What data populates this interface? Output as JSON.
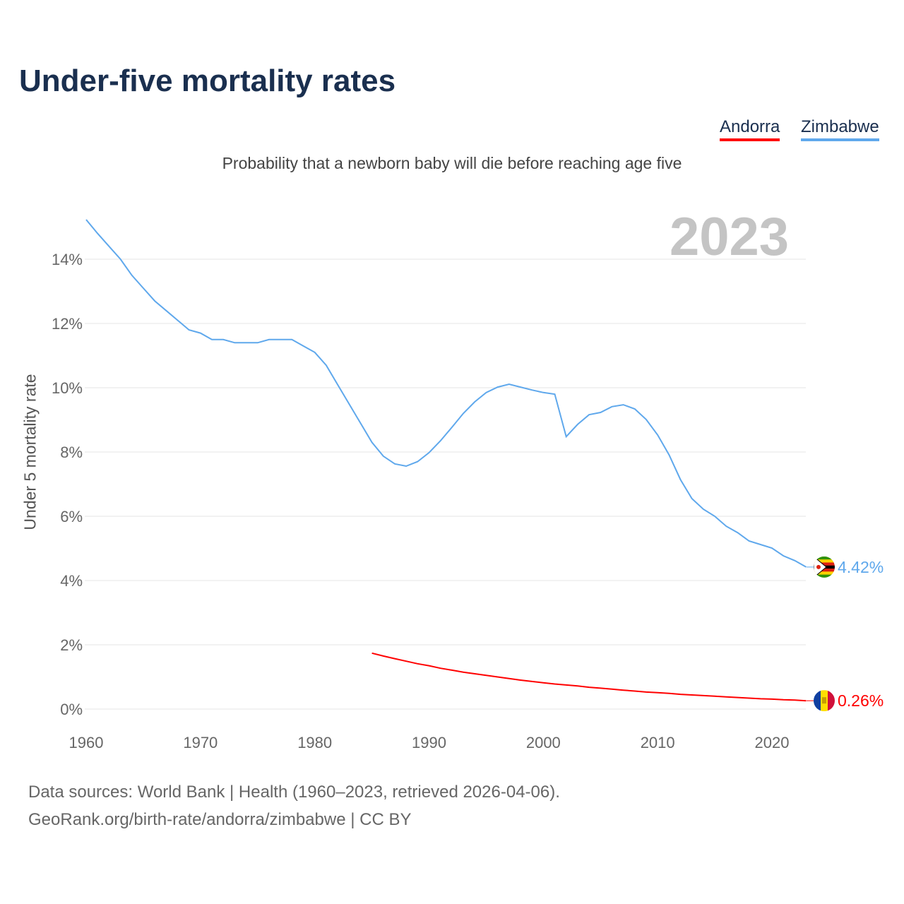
{
  "title": "Under-five mortality rates",
  "legend": [
    {
      "name": "Andorra",
      "color": "#ff0000"
    },
    {
      "name": "Zimbabwe",
      "color": "#5fa8ec"
    }
  ],
  "current_year": "2023",
  "footer": {
    "line1": "Data sources: World Bank | Health (1960–2023, retrieved 2026-04-06).",
    "line2": "GeoRank.org/birth-rate/andorra/zimbabwe | CC BY"
  },
  "chart_data": {
    "type": "line",
    "title": "Under-five mortality rates",
    "subtitle": "Probability that a newborn baby will die before reaching age five",
    "xlabel": "",
    "ylabel": "Under 5 mortality rate",
    "xlim": [
      1960,
      2023
    ],
    "ylim": [
      0,
      14.5
    ],
    "xticks": [
      1960,
      1970,
      1980,
      1990,
      2000,
      2010,
      2020
    ],
    "yticks": [
      0,
      2,
      4,
      6,
      8,
      10,
      12,
      14
    ],
    "ytick_labels": [
      "0%",
      "2%",
      "4%",
      "6%",
      "8%",
      "10%",
      "12%",
      "14%"
    ],
    "grid": true,
    "legend_position": "top-right",
    "series": [
      {
        "name": "Zimbabwe",
        "color": "#5fa8ec",
        "end_label": "4.42%",
        "start_year": 1960,
        "values": [
          15.23,
          14.8,
          14.4,
          14.0,
          13.5,
          13.1,
          12.7,
          12.4,
          12.1,
          11.8,
          11.7,
          11.5,
          11.5,
          11.4,
          11.4,
          11.4,
          11.5,
          11.5,
          11.5,
          11.3,
          11.1,
          10.7,
          10.1,
          9.5,
          8.9,
          8.3,
          7.87,
          7.63,
          7.56,
          7.7,
          7.98,
          8.35,
          8.77,
          9.2,
          9.56,
          9.85,
          10.02,
          10.11,
          10.02,
          9.93,
          9.85,
          9.8,
          8.48,
          8.86,
          9.16,
          9.23,
          9.41,
          9.47,
          9.34,
          9.01,
          8.53,
          7.91,
          7.14,
          6.55,
          6.22,
          6.0,
          5.69,
          5.49,
          5.23,
          5.12,
          5.01,
          4.77,
          4.62,
          4.42
        ]
      },
      {
        "name": "Andorra",
        "color": "#ff0000",
        "end_label": "0.26%",
        "start_year": 1985,
        "values": [
          1.74,
          1.65,
          1.57,
          1.49,
          1.41,
          1.35,
          1.27,
          1.21,
          1.15,
          1.1,
          1.05,
          1.0,
          0.95,
          0.9,
          0.86,
          0.82,
          0.78,
          0.75,
          0.72,
          0.68,
          0.65,
          0.62,
          0.59,
          0.56,
          0.53,
          0.51,
          0.49,
          0.46,
          0.44,
          0.42,
          0.4,
          0.38,
          0.36,
          0.34,
          0.32,
          0.31,
          0.29,
          0.28,
          0.26
        ]
      }
    ]
  }
}
